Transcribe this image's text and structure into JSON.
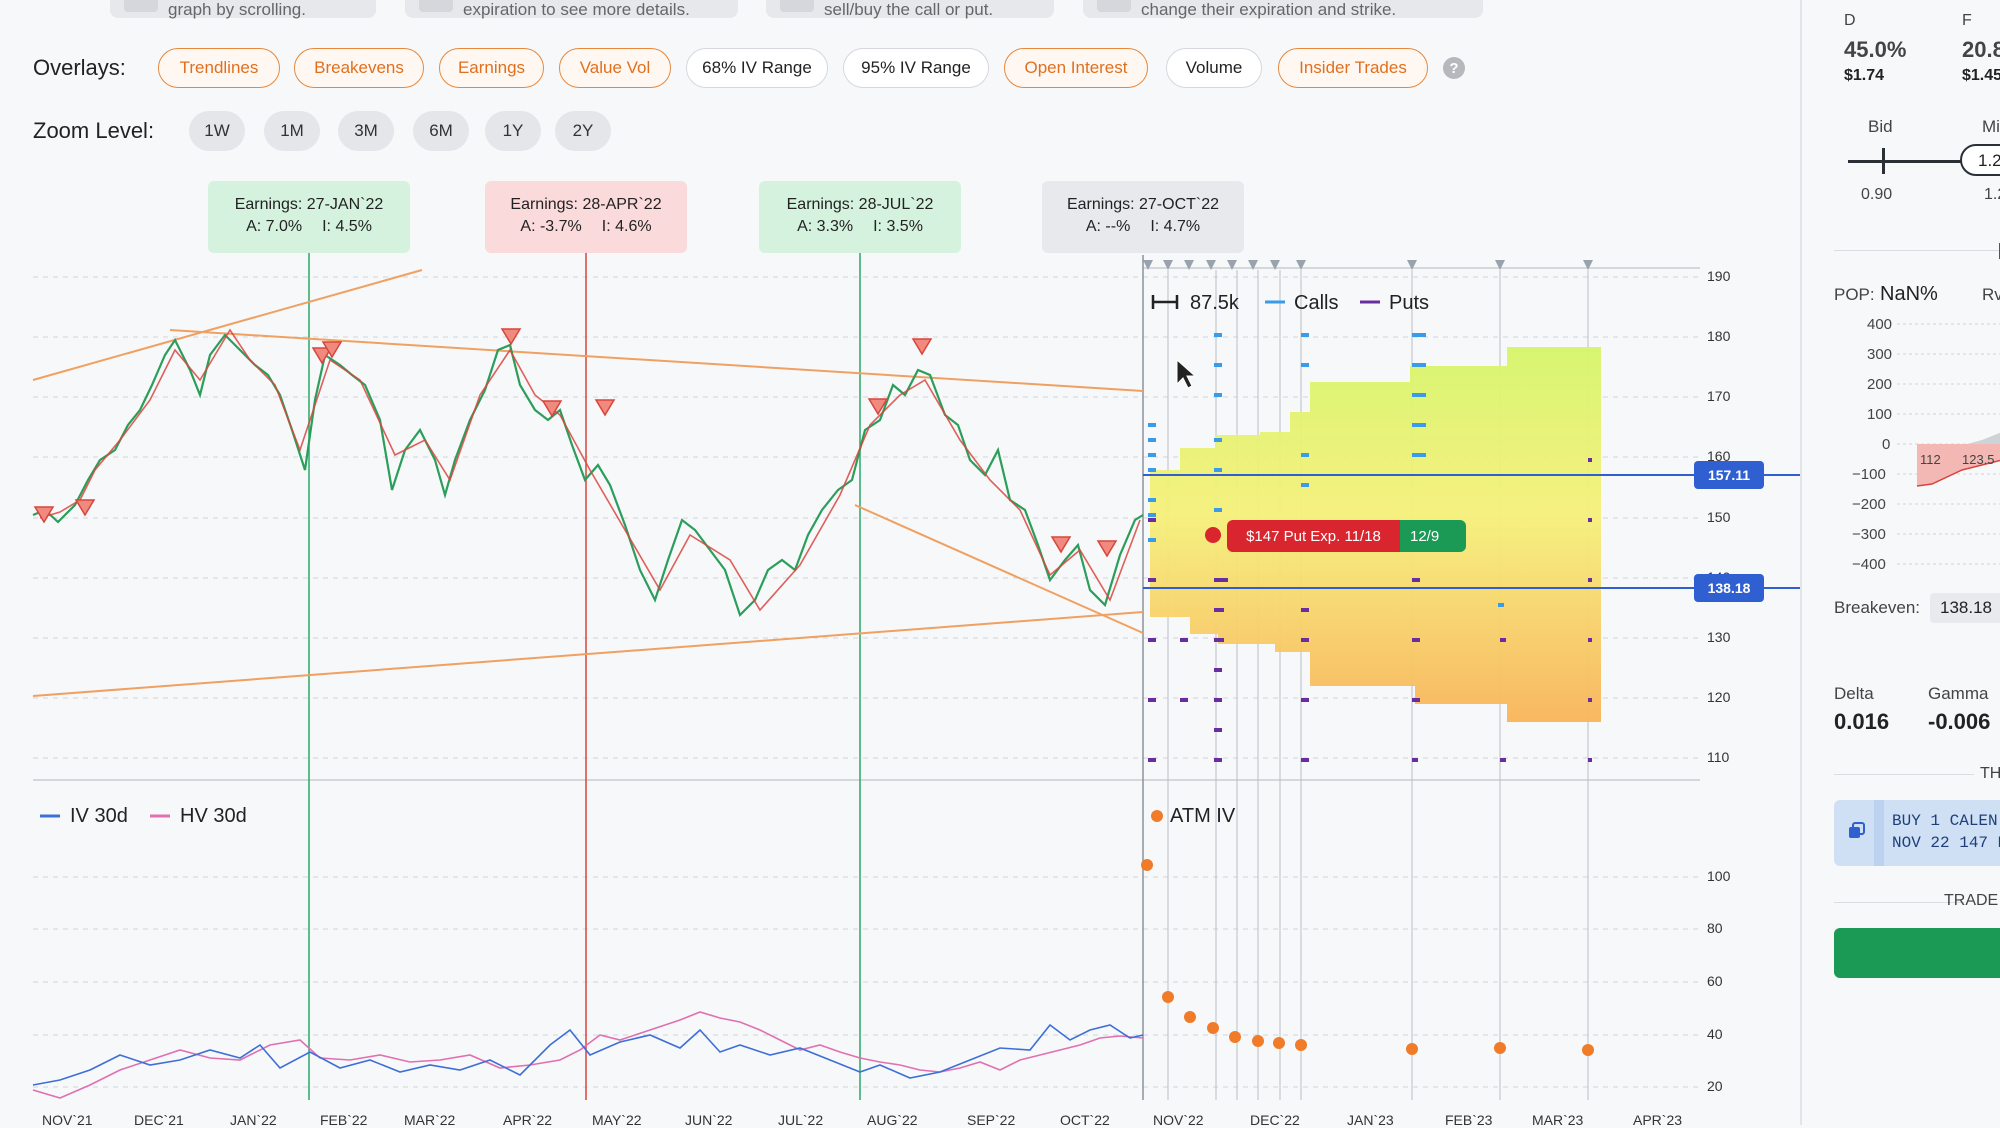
{
  "hints": [
    "graph by scrolling.",
    "expiration to see more details.",
    "sell/buy the call or put.",
    "change their expiration and strike."
  ],
  "overlays": {
    "label": "Overlays:",
    "items": [
      "Trendlines",
      "Breakevens",
      "Earnings",
      "Value Vol",
      "68% IV Range",
      "95% IV Range",
      "Open Interest",
      "Volume",
      "Insider Trades"
    ],
    "help": "?"
  },
  "zoom": {
    "label": "Zoom Level:",
    "items": [
      "1W",
      "1M",
      "3M",
      "6M",
      "1Y",
      "2Y"
    ]
  },
  "earnings": [
    {
      "title": "Earnings: 27-JAN`22",
      "a": "A: 7.0%",
      "i": "I: 4.5%"
    },
    {
      "title": "Earnings: 28-APR`22",
      "a": "A: -3.7%",
      "i": "I: 4.6%"
    },
    {
      "title": "Earnings: 28-JUL`22",
      "a": "A: 3.3%",
      "i": "I: 3.5%"
    },
    {
      "title": "Earnings: 27-OCT`22",
      "a": "A: --%",
      "i": "I: 4.7%"
    }
  ],
  "price_axis": [
    "190",
    "180",
    "170",
    "160",
    "150",
    "140",
    "130",
    "120",
    "110"
  ],
  "iv_axis": [
    "100",
    "80",
    "60",
    "40",
    "20"
  ],
  "x_axis": [
    "NOV`21",
    "DEC`21",
    "JAN`22",
    "FEB`22",
    "MAR`22",
    "APR`22",
    "MAY`22",
    "JUN`22",
    "JUL`22",
    "AUG`22",
    "SEP`22",
    "OCT`22",
    "NOV`22",
    "DEC`22",
    "JAN`23",
    "FEB`23",
    "MAR`23",
    "APR`23"
  ],
  "legend_top": {
    "volume": "87.5k",
    "calls": "Calls",
    "puts": "Puts"
  },
  "legend_bottom": {
    "iv": "IV 30d",
    "hv": "HV 30d",
    "atm": "ATM IV"
  },
  "breakevens": {
    "upper": "157.11",
    "lower": "138.18"
  },
  "position_tag": {
    "label": "$147 Put Exp. 11/18",
    "exp2": "12/9"
  },
  "right_panel": {
    "col_d": "D",
    "col_f": "F",
    "d_pct": "45.0%",
    "d_price": "$1.74",
    "f_pct": "20.8",
    "f_price": "$1.45",
    "bid_label": "Bid",
    "mid_label": "Mi",
    "bid_value": "0.90",
    "mid_value": "1.2",
    "mid_input": "1.2",
    "pop_label": "POP:",
    "pop_value": "NaN%",
    "rv_label": "Rv",
    "pnl_axis": [
      "400",
      "300",
      "200",
      "100",
      "0",
      "−100",
      "−200",
      "−300",
      "−400"
    ],
    "pnl_x": [
      "112",
      "123.5"
    ],
    "breakeven_label": "Breakeven:",
    "breakeven_value": "138.18",
    "delta_label": "Delta",
    "delta_value": "0.016",
    "gamma_label": "Gamma",
    "gamma_value": "-0.006",
    "section_th": "TH",
    "order_line1": "BUY 1 CALEN",
    "order_line2": "NOV 22 147 P",
    "trade_label": "TRADE C"
  },
  "colors": {
    "accent": "#e8873a",
    "calls": "#3a9be8",
    "puts": "#6a2da0",
    "breakeven": "#2f5fd0",
    "put_tag": "#d9262e",
    "exp_tag": "#1b9a55",
    "iv": "#3d6fd8",
    "hv": "#e070b0"
  }
}
